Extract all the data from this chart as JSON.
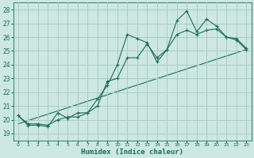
{
  "xlabel": "Humidex (Indice chaleur)",
  "x_ticks": [
    0,
    1,
    2,
    3,
    4,
    5,
    6,
    7,
    8,
    9,
    10,
    11,
    12,
    13,
    14,
    15,
    16,
    17,
    18,
    19,
    20,
    21,
    22,
    23
  ],
  "ylim": [
    18.5,
    28.5
  ],
  "xlim": [
    -0.5,
    23.5
  ],
  "yticks": [
    19,
    20,
    21,
    22,
    23,
    24,
    25,
    26,
    27,
    28
  ],
  "bg_color": "#cce8e0",
  "grid_color": "#aaccc4",
  "line_color": "#1a6b5a",
  "line1_y": [
    20.3,
    19.6,
    19.6,
    19.5,
    20.5,
    20.1,
    20.5,
    20.5,
    21.5,
    22.5,
    24.0,
    26.2,
    25.9,
    25.6,
    24.2,
    25.1,
    27.2,
    27.9,
    26.4,
    27.3,
    26.8,
    26.0,
    25.9,
    25.2
  ],
  "line2_y": [
    20.3,
    19.7,
    19.7,
    19.6,
    20.0,
    20.2,
    20.2,
    20.5,
    21.0,
    22.8,
    23.0,
    24.5,
    24.5,
    25.5,
    24.5,
    25.1,
    26.2,
    26.5,
    26.2,
    26.5,
    26.6,
    26.0,
    25.8,
    25.1
  ],
  "line3_x": [
    0,
    23
  ],
  "line3_y": [
    19.7,
    25.1
  ]
}
